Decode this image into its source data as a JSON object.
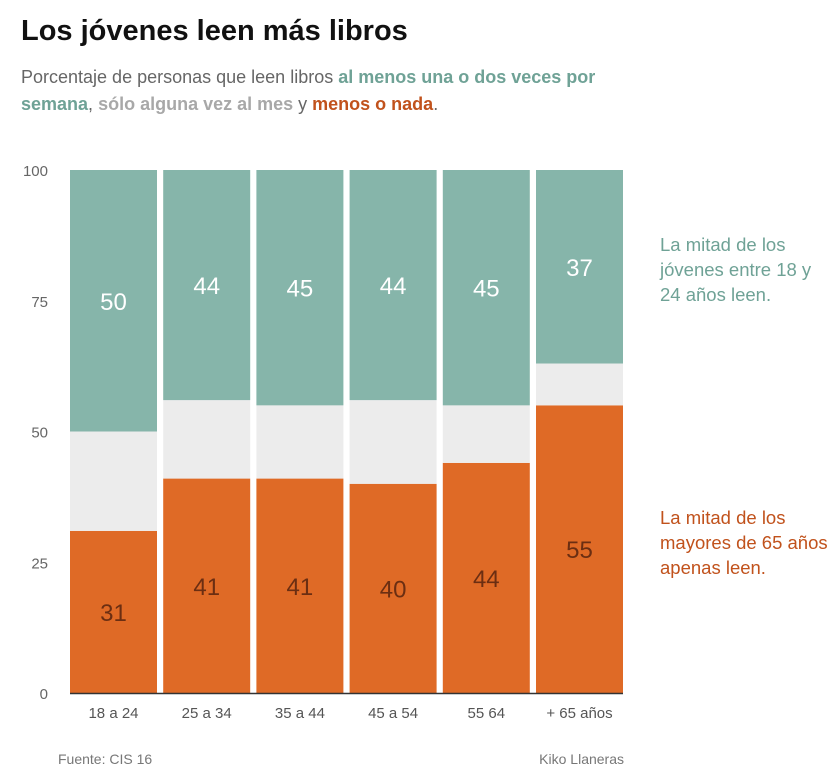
{
  "title": "Los jóvenes leen más libros",
  "subtitle": {
    "prefix": "Porcentaje de personas que leen libros ",
    "weekly": "al menos una o dos veces por semana",
    "sep1": ", ",
    "monthly": "sólo alguna vez al mes",
    "sep2": " y ",
    "rarely": "menos o nada",
    "end": "."
  },
  "colors": {
    "weekly": "#86b5aa",
    "monthly": "#ececec",
    "rarely": "#df6a26",
    "weekly_text": "#6fa296",
    "monthly_text": "#a8a8a8",
    "rarely_text": "#c1521c"
  },
  "annotations": {
    "young": "La mitad de los jóvenes entre 18 y 24 años leen.",
    "old": "La mitad de los mayores de 65 años apenas leen."
  },
  "footer": {
    "source": "Fuente: CIS 16",
    "author": "Kiko Llaneras"
  },
  "chart_data": {
    "type": "bar",
    "stacked": true,
    "title": "Los jóvenes leen más libros",
    "ylim": [
      0,
      100
    ],
    "yticks": [
      "0",
      "25",
      "50",
      "75",
      "100"
    ],
    "categories": [
      "18 a 24",
      "25 a 34",
      "35 a 44",
      "45 a 54",
      "55  64",
      "+ 65 años"
    ],
    "series": [
      {
        "name": "menos o nada",
        "values": [
          31,
          41,
          41,
          40,
          44,
          55
        ],
        "labels": [
          "31",
          "41",
          "41",
          "40",
          "44",
          "55"
        ]
      },
      {
        "name": "sólo alguna vez al mes",
        "values": [
          19,
          15,
          14,
          16,
          11,
          8
        ]
      },
      {
        "name": "al menos una o dos veces por semana",
        "values": [
          50,
          44,
          45,
          44,
          45,
          37
        ],
        "labels": [
          "50",
          "44",
          "45",
          "44",
          "45",
          "37"
        ]
      }
    ]
  }
}
